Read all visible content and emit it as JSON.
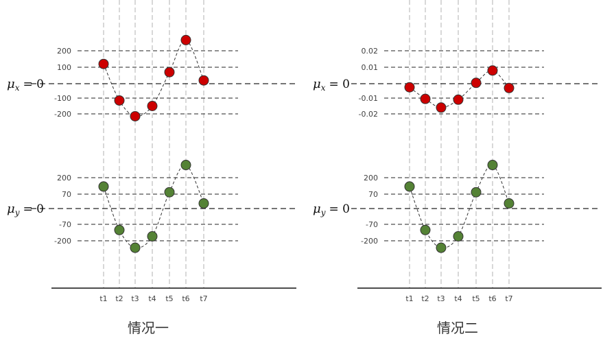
{
  "colors": {
    "x_point": "#cc0000",
    "y_point": "#548235",
    "point_stroke": "#333333",
    "grid_dash": "#222222",
    "time_line": "#b0b0b0",
    "axis": "#111111",
    "curve": "#333333"
  },
  "time_labels": [
    "t1",
    "t2",
    "t3",
    "t4",
    "t5",
    "t6",
    "t7"
  ],
  "panels": [
    {
      "caption": "情况一",
      "top": {
        "mu_symbol": "μ",
        "mu_sub": "x",
        "mu_eq": "= 0",
        "tick_labels": [
          "200",
          "100",
          "-100",
          "-200"
        ],
        "tick_values": [
          200,
          100,
          -100,
          -200
        ],
        "ylim": [
          -240,
          280
        ],
        "points": [
          {
            "t": "t1",
            "y": 120
          },
          {
            "t": "t2",
            "y": -115
          },
          {
            "t": "t3",
            "y": -215
          },
          {
            "t": "t4",
            "y": -150
          },
          {
            "t": "t5",
            "y": 70
          },
          {
            "t": "t6",
            "y": 265
          },
          {
            "t": "t7",
            "y": 20
          }
        ]
      },
      "bottom": {
        "mu_symbol": "μ",
        "mu_sub": "y",
        "mu_eq": "= 0",
        "tick_labels": [
          "200",
          "70",
          "-70",
          "-200"
        ],
        "tick_values": [
          200,
          70,
          -70,
          -200
        ],
        "ylim": [
          -240,
          280
        ],
        "points": [
          {
            "t": "t1",
            "y": 130
          },
          {
            "t": "t2",
            "y": -115
          },
          {
            "t": "t3",
            "y": -255
          },
          {
            "t": "t4",
            "y": -165
          },
          {
            "t": "t5",
            "y": 85
          },
          {
            "t": "t6",
            "y": 300
          },
          {
            "t": "t7",
            "y": 25
          }
        ]
      }
    },
    {
      "caption": "情况二",
      "top": {
        "mu_symbol": "μ",
        "mu_sub": "x",
        "mu_eq": "= 0",
        "tick_labels": [
          "0.02",
          "0.01",
          "-0.01",
          "-0.02"
        ],
        "tick_values": [
          0.02,
          0.01,
          -0.01,
          -0.02
        ],
        "ylim": [
          -0.024,
          0.028
        ],
        "points": [
          {
            "t": "t1",
            "y": -0.0025
          },
          {
            "t": "t2",
            "y": -0.0105
          },
          {
            "t": "t3",
            "y": -0.016
          },
          {
            "t": "t4",
            "y": -0.011
          },
          {
            "t": "t5",
            "y": 0.0005
          },
          {
            "t": "t6",
            "y": 0.008
          },
          {
            "t": "t7",
            "y": -0.003
          }
        ]
      },
      "bottom": {
        "mu_symbol": "μ",
        "mu_sub": "y",
        "mu_eq": "= 0",
        "tick_labels": [
          "200",
          "70",
          "-70",
          "-200"
        ],
        "tick_values": [
          200,
          70,
          -70,
          -200
        ],
        "ylim": [
          -240,
          280
        ],
        "points": [
          {
            "t": "t1",
            "y": 130
          },
          {
            "t": "t2",
            "y": -115
          },
          {
            "t": "t3",
            "y": -255
          },
          {
            "t": "t4",
            "y": -165
          },
          {
            "t": "t5",
            "y": 85
          },
          {
            "t": "t6",
            "y": 300
          },
          {
            "t": "t7",
            "y": 25
          }
        ]
      }
    }
  ]
}
